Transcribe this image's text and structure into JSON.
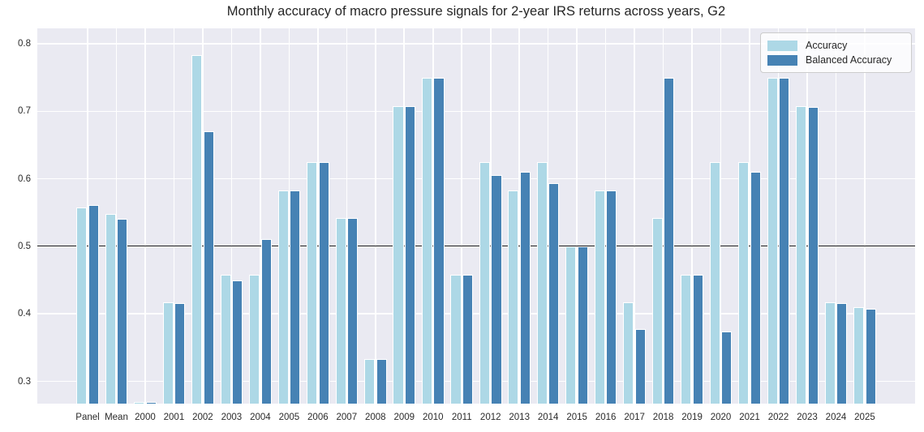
{
  "chart_data": {
    "type": "bar",
    "title": "Monthly accuracy of macro pressure signals for 2-year IRS returns across years, G2",
    "categories": [
      "Panel",
      "Mean",
      "2000",
      "2001",
      "2002",
      "2003",
      "2004",
      "2005",
      "2006",
      "2007",
      "2008",
      "2009",
      "2010",
      "2011",
      "2012",
      "2013",
      "2014",
      "2015",
      "2016",
      "2017",
      "2018",
      "2019",
      "2020",
      "2021",
      "2022",
      "2023",
      "2024",
      "2025"
    ],
    "series": [
      {
        "name": "Accuracy",
        "color": "#add8e6",
        "values": [
          0.558,
          0.548,
          0.27,
          0.417,
          0.783,
          0.458,
          0.458,
          0.583,
          0.625,
          0.542,
          0.333,
          0.708,
          0.75,
          0.458,
          0.625,
          0.583,
          0.625,
          0.5,
          0.583,
          0.417,
          0.542,
          0.458,
          0.625,
          0.625,
          0.75,
          0.708,
          0.417,
          0.41
        ]
      },
      {
        "name": "Balanced Accuracy",
        "color": "#4682b4",
        "values": [
          0.561,
          0.541,
          0.27,
          0.416,
          0.671,
          0.45,
          0.511,
          0.583,
          0.625,
          0.542,
          0.333,
          0.708,
          0.75,
          0.458,
          0.606,
          0.611,
          0.594,
          0.5,
          0.583,
          0.377,
          0.75,
          0.458,
          0.374,
          0.611,
          0.75,
          0.707,
          0.416,
          0.408
        ]
      }
    ],
    "ytick_labels": [
      "0.3",
      "0.4",
      "0.5",
      "0.6",
      "0.7",
      "0.8"
    ],
    "yticks": [
      0.3,
      0.4,
      0.5,
      0.6,
      0.7,
      0.8
    ],
    "ylim": [
      0.267,
      0.823
    ],
    "reference_line": 0.5,
    "legend_position": "upper right",
    "grid": true,
    "plot_bg_color": "#eaeaf2",
    "grid_color": "#ffffff",
    "reference_line_color": "#1a1a1a",
    "text_color": "#262626"
  }
}
